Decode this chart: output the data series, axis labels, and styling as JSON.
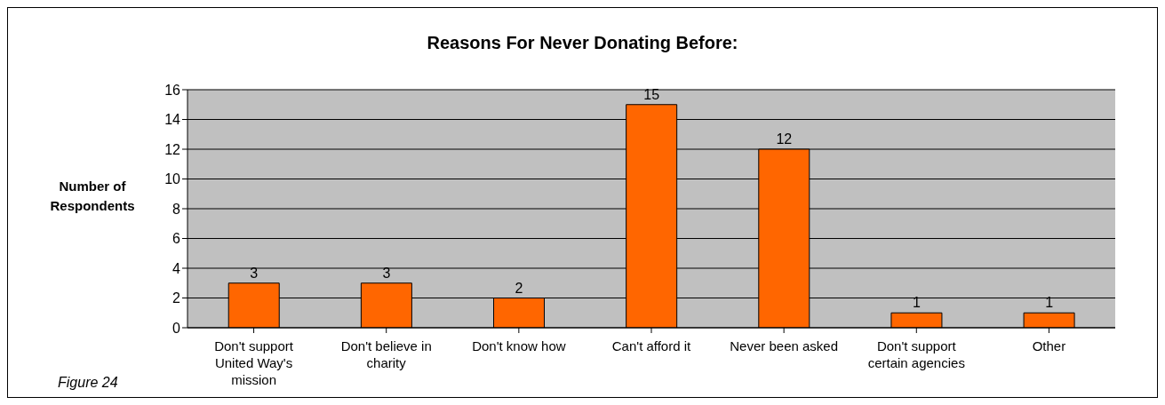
{
  "chart_data": {
    "type": "bar",
    "title": "Reasons For Never Donating Before:",
    "ylabel": "Number of Respondents",
    "categories": [
      "Don't support United Way's mission",
      "Don't believe in charity",
      "Don't know how",
      "Can't afford it",
      "Never been asked",
      "Don't support certain agencies",
      "Other"
    ],
    "values": [
      3,
      3,
      2,
      15,
      12,
      1,
      1
    ],
    "color": "#ff6600",
    "ylim": [
      0,
      16
    ],
    "yticks": [
      0,
      2,
      4,
      6,
      8,
      10,
      12,
      14,
      16
    ],
    "grid": "y",
    "data_labels": true,
    "annotations": [
      "Figure 24"
    ]
  }
}
